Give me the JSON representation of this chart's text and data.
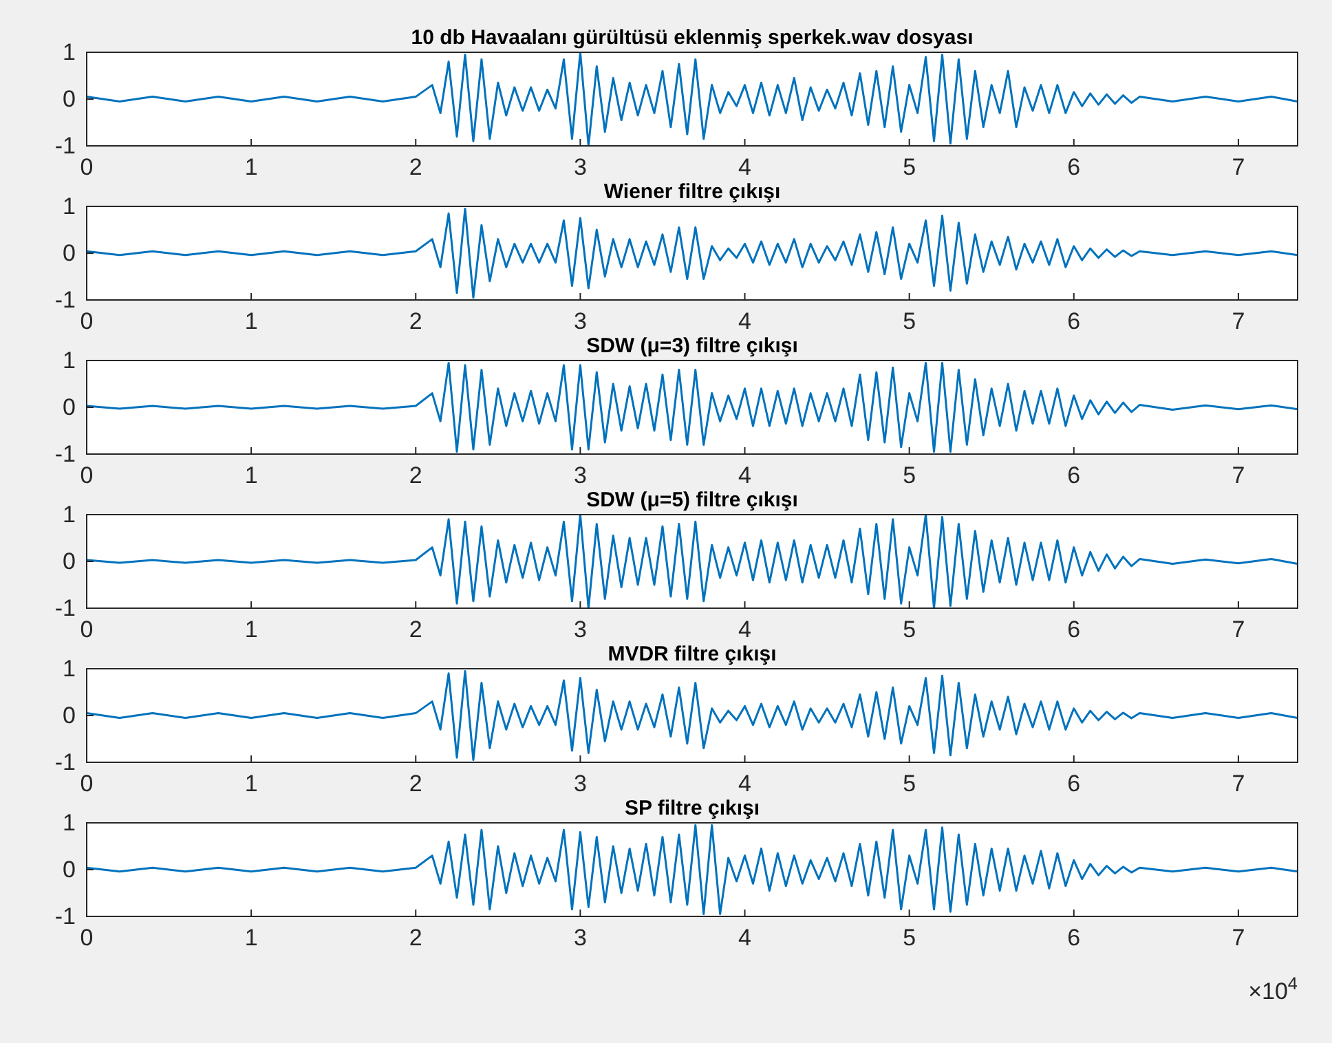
{
  "chart_data": [
    {
      "type": "line",
      "title": "10 db Havaalanı gürültüsü eklenmiş sperkek.wav dosyası",
      "color": "#0072bd",
      "xlim": [
        0,
        7.36
      ],
      "ylim": [
        -1,
        1
      ],
      "yticks": [
        -1,
        0,
        1
      ],
      "xticks": [
        0,
        1,
        2,
        3,
        4,
        5,
        6,
        7
      ],
      "x": [
        0,
        0.2,
        0.4,
        0.6,
        0.8,
        1,
        1.2,
        1.4,
        1.6,
        1.8,
        2,
        2.1,
        2.15,
        2.2,
        2.25,
        2.3,
        2.35,
        2.4,
        2.45,
        2.5,
        2.55,
        2.6,
        2.65,
        2.7,
        2.75,
        2.8,
        2.85,
        2.9,
        2.95,
        3,
        3.05,
        3.1,
        3.15,
        3.2,
        3.25,
        3.3,
        3.35,
        3.4,
        3.45,
        3.5,
        3.55,
        3.6,
        3.65,
        3.7,
        3.75,
        3.8,
        3.85,
        3.9,
        3.95,
        4,
        4.05,
        4.1,
        4.15,
        4.2,
        4.25,
        4.3,
        4.35,
        4.4,
        4.45,
        4.5,
        4.55,
        4.6,
        4.65,
        4.7,
        4.75,
        4.8,
        4.85,
        4.9,
        4.95,
        5,
        5.05,
        5.1,
        5.15,
        5.2,
        5.25,
        5.3,
        5.35,
        5.4,
        5.45,
        5.5,
        5.55,
        5.6,
        5.65,
        5.7,
        5.75,
        5.8,
        5.85,
        5.9,
        5.95,
        6,
        6.05,
        6.1,
        6.15,
        6.2,
        6.25,
        6.3,
        6.35,
        6.4,
        6.6,
        6.8,
        7,
        7.2,
        7.36
      ],
      "values": [
        0.05,
        -0.05,
        0.05,
        -0.05,
        0.05,
        -0.05,
        0.05,
        -0.05,
        0.05,
        -0.05,
        0.05,
        0.3,
        -0.3,
        0.8,
        -0.8,
        0.95,
        -0.9,
        0.85,
        -0.85,
        0.35,
        -0.35,
        0.25,
        -0.25,
        0.25,
        -0.25,
        0.2,
        -0.2,
        0.85,
        -0.85,
        1,
        -1,
        0.7,
        -0.7,
        0.45,
        -0.45,
        0.35,
        -0.35,
        0.3,
        -0.3,
        0.6,
        -0.6,
        0.75,
        -0.75,
        0.85,
        -0.85,
        0.3,
        -0.3,
        0.15,
        -0.15,
        0.3,
        -0.3,
        0.35,
        -0.35,
        0.3,
        -0.3,
        0.45,
        -0.45,
        0.25,
        -0.25,
        0.2,
        -0.2,
        0.35,
        -0.35,
        0.55,
        -0.55,
        0.6,
        -0.6,
        0.7,
        -0.7,
        0.3,
        -0.3,
        0.9,
        -0.9,
        0.95,
        -0.95,
        0.85,
        -0.85,
        0.6,
        -0.6,
        0.3,
        -0.3,
        0.6,
        -0.6,
        0.25,
        -0.25,
        0.3,
        -0.3,
        0.3,
        -0.3,
        0.15,
        -0.15,
        0.12,
        -0.12,
        0.1,
        -0.1,
        0.08,
        -0.08,
        0.05,
        -0.05,
        0.05,
        -0.05,
        0.05,
        -0.05
      ]
    },
    {
      "type": "line",
      "title": "Wiener filtre çıkışı",
      "color": "#0072bd",
      "xlim": [
        0,
        7.36
      ],
      "ylim": [
        -1,
        1
      ],
      "yticks": [
        -1,
        0,
        1
      ],
      "xticks": [
        0,
        1,
        2,
        3,
        4,
        5,
        6,
        7
      ],
      "x": [
        0,
        0.2,
        0.4,
        0.6,
        0.8,
        1,
        1.2,
        1.4,
        1.6,
        1.8,
        2,
        2.1,
        2.15,
        2.2,
        2.25,
        2.3,
        2.35,
        2.4,
        2.45,
        2.5,
        2.55,
        2.6,
        2.65,
        2.7,
        2.75,
        2.8,
        2.85,
        2.9,
        2.95,
        3,
        3.05,
        3.1,
        3.15,
        3.2,
        3.25,
        3.3,
        3.35,
        3.4,
        3.45,
        3.5,
        3.55,
        3.6,
        3.65,
        3.7,
        3.75,
        3.8,
        3.85,
        3.9,
        3.95,
        4,
        4.05,
        4.1,
        4.15,
        4.2,
        4.25,
        4.3,
        4.35,
        4.4,
        4.45,
        4.5,
        4.55,
        4.6,
        4.65,
        4.7,
        4.75,
        4.8,
        4.85,
        4.9,
        4.95,
        5,
        5.05,
        5.1,
        5.15,
        5.2,
        5.25,
        5.3,
        5.35,
        5.4,
        5.45,
        5.5,
        5.55,
        5.6,
        5.65,
        5.7,
        5.75,
        5.8,
        5.85,
        5.9,
        5.95,
        6,
        6.05,
        6.1,
        6.15,
        6.2,
        6.25,
        6.3,
        6.35,
        6.4,
        6.6,
        6.8,
        7,
        7.2,
        7.36
      ],
      "values": [
        0.04,
        -0.04,
        0.04,
        -0.04,
        0.04,
        -0.04,
        0.04,
        -0.04,
        0.04,
        -0.04,
        0.04,
        0.3,
        -0.3,
        0.85,
        -0.85,
        0.95,
        -0.95,
        0.6,
        -0.6,
        0.3,
        -0.3,
        0.2,
        -0.2,
        0.2,
        -0.2,
        0.2,
        -0.2,
        0.7,
        -0.7,
        0.75,
        -0.75,
        0.5,
        -0.5,
        0.3,
        -0.3,
        0.3,
        -0.3,
        0.25,
        -0.25,
        0.4,
        -0.4,
        0.55,
        -0.55,
        0.55,
        -0.55,
        0.15,
        -0.15,
        0.1,
        -0.1,
        0.2,
        -0.2,
        0.25,
        -0.25,
        0.2,
        -0.2,
        0.3,
        -0.3,
        0.2,
        -0.2,
        0.15,
        -0.15,
        0.25,
        -0.25,
        0.4,
        -0.4,
        0.45,
        -0.45,
        0.55,
        -0.55,
        0.2,
        -0.2,
        0.7,
        -0.7,
        0.8,
        -0.8,
        0.65,
        -0.65,
        0.4,
        -0.4,
        0.25,
        -0.25,
        0.35,
        -0.35,
        0.2,
        -0.2,
        0.25,
        -0.25,
        0.3,
        -0.3,
        0.15,
        -0.15,
        0.1,
        -0.1,
        0.08,
        -0.08,
        0.06,
        -0.06,
        0.04,
        -0.04,
        0.04,
        -0.04,
        0.04,
        -0.04
      ]
    },
    {
      "type": "line",
      "title": "SDW (μ=3) filtre çıkışı",
      "color": "#0072bd",
      "xlim": [
        0,
        7.36
      ],
      "ylim": [
        -1,
        1
      ],
      "yticks": [
        -1,
        0,
        1
      ],
      "xticks": [
        0,
        1,
        2,
        3,
        4,
        5,
        6,
        7
      ],
      "x": [
        0,
        0.2,
        0.4,
        0.6,
        0.8,
        1,
        1.2,
        1.4,
        1.6,
        1.8,
        2,
        2.1,
        2.15,
        2.2,
        2.25,
        2.3,
        2.35,
        2.4,
        2.45,
        2.5,
        2.55,
        2.6,
        2.65,
        2.7,
        2.75,
        2.8,
        2.85,
        2.9,
        2.95,
        3,
        3.05,
        3.1,
        3.15,
        3.2,
        3.25,
        3.3,
        3.35,
        3.4,
        3.45,
        3.5,
        3.55,
        3.6,
        3.65,
        3.7,
        3.75,
        3.8,
        3.85,
        3.9,
        3.95,
        4,
        4.05,
        4.1,
        4.15,
        4.2,
        4.25,
        4.3,
        4.35,
        4.4,
        4.45,
        4.5,
        4.55,
        4.6,
        4.65,
        4.7,
        4.75,
        4.8,
        4.85,
        4.9,
        4.95,
        5,
        5.05,
        5.1,
        5.15,
        5.2,
        5.25,
        5.3,
        5.35,
        5.4,
        5.45,
        5.5,
        5.55,
        5.6,
        5.65,
        5.7,
        5.75,
        5.8,
        5.85,
        5.9,
        5.95,
        6,
        6.05,
        6.1,
        6.15,
        6.2,
        6.25,
        6.3,
        6.35,
        6.4,
        6.6,
        6.8,
        7,
        7.2,
        7.36
      ],
      "values": [
        0.03,
        -0.03,
        0.03,
        -0.03,
        0.03,
        -0.03,
        0.03,
        -0.03,
        0.03,
        -0.03,
        0.03,
        0.3,
        -0.3,
        0.95,
        -0.95,
        0.9,
        -0.9,
        0.8,
        -0.8,
        0.4,
        -0.4,
        0.3,
        -0.3,
        0.35,
        -0.35,
        0.3,
        -0.3,
        0.9,
        -0.9,
        0.9,
        -0.9,
        0.75,
        -0.75,
        0.5,
        -0.5,
        0.45,
        -0.45,
        0.5,
        -0.5,
        0.7,
        -0.7,
        0.8,
        -0.8,
        0.8,
        -0.8,
        0.3,
        -0.3,
        0.25,
        -0.25,
        0.4,
        -0.4,
        0.4,
        -0.4,
        0.35,
        -0.35,
        0.4,
        -0.4,
        0.3,
        -0.3,
        0.3,
        -0.3,
        0.4,
        -0.4,
        0.7,
        -0.7,
        0.75,
        -0.75,
        0.85,
        -0.85,
        0.3,
        -0.3,
        0.95,
        -0.95,
        0.95,
        -0.95,
        0.8,
        -0.8,
        0.6,
        -0.6,
        0.4,
        -0.4,
        0.5,
        -0.5,
        0.35,
        -0.35,
        0.35,
        -0.35,
        0.4,
        -0.4,
        0.25,
        -0.25,
        0.15,
        -0.15,
        0.12,
        -0.12,
        0.1,
        -0.1,
        0.05,
        -0.05,
        0.04,
        -0.04,
        0.04,
        -0.04
      ]
    },
    {
      "type": "line",
      "title": "SDW (μ=5) filtre çıkışı",
      "color": "#0072bd",
      "xlim": [
        0,
        7.36
      ],
      "ylim": [
        -1,
        1
      ],
      "yticks": [
        -1,
        0,
        1
      ],
      "xticks": [
        0,
        1,
        2,
        3,
        4,
        5,
        6,
        7
      ],
      "x": [
        0,
        0.2,
        0.4,
        0.6,
        0.8,
        1,
        1.2,
        1.4,
        1.6,
        1.8,
        2,
        2.1,
        2.15,
        2.2,
        2.25,
        2.3,
        2.35,
        2.4,
        2.45,
        2.5,
        2.55,
        2.6,
        2.65,
        2.7,
        2.75,
        2.8,
        2.85,
        2.9,
        2.95,
        3,
        3.05,
        3.1,
        3.15,
        3.2,
        3.25,
        3.3,
        3.35,
        3.4,
        3.45,
        3.5,
        3.55,
        3.6,
        3.65,
        3.7,
        3.75,
        3.8,
        3.85,
        3.9,
        3.95,
        4,
        4.05,
        4.1,
        4.15,
        4.2,
        4.25,
        4.3,
        4.35,
        4.4,
        4.45,
        4.5,
        4.55,
        4.6,
        4.65,
        4.7,
        4.75,
        4.8,
        4.85,
        4.9,
        4.95,
        5,
        5.05,
        5.1,
        5.15,
        5.2,
        5.25,
        5.3,
        5.35,
        5.4,
        5.45,
        5.5,
        5.55,
        5.6,
        5.65,
        5.7,
        5.75,
        5.8,
        5.85,
        5.9,
        5.95,
        6,
        6.05,
        6.1,
        6.15,
        6.2,
        6.25,
        6.3,
        6.35,
        6.4,
        6.6,
        6.8,
        7,
        7.2,
        7.36
      ],
      "values": [
        0.03,
        -0.03,
        0.03,
        -0.03,
        0.03,
        -0.03,
        0.03,
        -0.03,
        0.03,
        -0.03,
        0.03,
        0.3,
        -0.3,
        0.9,
        -0.9,
        0.85,
        -0.85,
        0.75,
        -0.75,
        0.45,
        -0.45,
        0.35,
        -0.35,
        0.4,
        -0.4,
        0.3,
        -0.3,
        0.85,
        -0.85,
        1,
        -1,
        0.8,
        -0.8,
        0.55,
        -0.55,
        0.5,
        -0.5,
        0.5,
        -0.5,
        0.75,
        -0.75,
        0.8,
        -0.8,
        0.85,
        -0.85,
        0.35,
        -0.35,
        0.3,
        -0.3,
        0.4,
        -0.4,
        0.45,
        -0.45,
        0.4,
        -0.4,
        0.45,
        -0.45,
        0.35,
        -0.35,
        0.35,
        -0.35,
        0.45,
        -0.45,
        0.7,
        -0.7,
        0.8,
        -0.8,
        0.9,
        -0.9,
        0.3,
        -0.3,
        1,
        -1,
        0.95,
        -0.95,
        0.8,
        -0.8,
        0.65,
        -0.65,
        0.45,
        -0.45,
        0.5,
        -0.5,
        0.4,
        -0.4,
        0.4,
        -0.4,
        0.45,
        -0.45,
        0.3,
        -0.3,
        0.2,
        -0.2,
        0.15,
        -0.15,
        0.1,
        -0.1,
        0.05,
        -0.05,
        0.04,
        -0.04,
        0.05,
        -0.05
      ]
    },
    {
      "type": "line",
      "title": "MVDR filtre çıkışı",
      "color": "#0072bd",
      "xlim": [
        0,
        7.36
      ],
      "ylim": [
        -1,
        1
      ],
      "yticks": [
        -1,
        0,
        1
      ],
      "xticks": [
        0,
        1,
        2,
        3,
        4,
        5,
        6,
        7
      ],
      "x": [
        0,
        0.2,
        0.4,
        0.6,
        0.8,
        1,
        1.2,
        1.4,
        1.6,
        1.8,
        2,
        2.1,
        2.15,
        2.2,
        2.25,
        2.3,
        2.35,
        2.4,
        2.45,
        2.5,
        2.55,
        2.6,
        2.65,
        2.7,
        2.75,
        2.8,
        2.85,
        2.9,
        2.95,
        3,
        3.05,
        3.1,
        3.15,
        3.2,
        3.25,
        3.3,
        3.35,
        3.4,
        3.45,
        3.5,
        3.55,
        3.6,
        3.65,
        3.7,
        3.75,
        3.8,
        3.85,
        3.9,
        3.95,
        4,
        4.05,
        4.1,
        4.15,
        4.2,
        4.25,
        4.3,
        4.35,
        4.4,
        4.45,
        4.5,
        4.55,
        4.6,
        4.65,
        4.7,
        4.75,
        4.8,
        4.85,
        4.9,
        4.95,
        5,
        5.05,
        5.1,
        5.15,
        5.2,
        5.25,
        5.3,
        5.35,
        5.4,
        5.45,
        5.5,
        5.55,
        5.6,
        5.65,
        5.7,
        5.75,
        5.8,
        5.85,
        5.9,
        5.95,
        6,
        6.05,
        6.1,
        6.15,
        6.2,
        6.25,
        6.3,
        6.35,
        6.4,
        6.6,
        6.8,
        7,
        7.2,
        7.36
      ],
      "values": [
        0.05,
        -0.05,
        0.05,
        -0.05,
        0.05,
        -0.05,
        0.05,
        -0.05,
        0.05,
        -0.05,
        0.05,
        0.3,
        -0.3,
        0.9,
        -0.9,
        0.95,
        -0.95,
        0.7,
        -0.7,
        0.3,
        -0.3,
        0.25,
        -0.25,
        0.2,
        -0.2,
        0.2,
        -0.2,
        0.75,
        -0.75,
        0.8,
        -0.8,
        0.55,
        -0.55,
        0.3,
        -0.3,
        0.3,
        -0.3,
        0.25,
        -0.25,
        0.45,
        -0.45,
        0.6,
        -0.6,
        0.7,
        -0.7,
        0.15,
        -0.15,
        0.1,
        -0.1,
        0.2,
        -0.2,
        0.25,
        -0.25,
        0.2,
        -0.2,
        0.3,
        -0.3,
        0.15,
        -0.15,
        0.15,
        -0.15,
        0.25,
        -0.25,
        0.45,
        -0.45,
        0.5,
        -0.5,
        0.6,
        -0.6,
        0.2,
        -0.2,
        0.8,
        -0.8,
        0.85,
        -0.85,
        0.7,
        -0.7,
        0.45,
        -0.45,
        0.3,
        -0.3,
        0.4,
        -0.4,
        0.25,
        -0.25,
        0.3,
        -0.3,
        0.3,
        -0.3,
        0.15,
        -0.15,
        0.1,
        -0.1,
        0.08,
        -0.08,
        0.06,
        -0.06,
        0.05,
        -0.05,
        0.05,
        -0.05,
        0.05,
        -0.05
      ]
    },
    {
      "type": "line",
      "title": "SP filtre çıkışı",
      "color": "#0072bd",
      "xlim": [
        0,
        7.36
      ],
      "ylim": [
        -1,
        1
      ],
      "yticks": [
        -1,
        0,
        1
      ],
      "xticks": [
        0,
        1,
        2,
        3,
        4,
        5,
        6,
        7
      ],
      "annotations": [
        "×10$^{4}$"
      ],
      "x": [
        0,
        0.2,
        0.4,
        0.6,
        0.8,
        1,
        1.2,
        1.4,
        1.6,
        1.8,
        2,
        2.1,
        2.15,
        2.2,
        2.25,
        2.3,
        2.35,
        2.4,
        2.45,
        2.5,
        2.55,
        2.6,
        2.65,
        2.7,
        2.75,
        2.8,
        2.85,
        2.9,
        2.95,
        3,
        3.05,
        3.1,
        3.15,
        3.2,
        3.25,
        3.3,
        3.35,
        3.4,
        3.45,
        3.5,
        3.55,
        3.6,
        3.65,
        3.7,
        3.75,
        3.8,
        3.85,
        3.9,
        3.95,
        4,
        4.05,
        4.1,
        4.15,
        4.2,
        4.25,
        4.3,
        4.35,
        4.4,
        4.45,
        4.5,
        4.55,
        4.6,
        4.65,
        4.7,
        4.75,
        4.8,
        4.85,
        4.9,
        4.95,
        5,
        5.05,
        5.1,
        5.15,
        5.2,
        5.25,
        5.3,
        5.35,
        5.4,
        5.45,
        5.5,
        5.55,
        5.6,
        5.65,
        5.7,
        5.75,
        5.8,
        5.85,
        5.9,
        5.95,
        6,
        6.05,
        6.1,
        6.15,
        6.2,
        6.25,
        6.3,
        6.35,
        6.4,
        6.6,
        6.8,
        7,
        7.2,
        7.36
      ],
      "values": [
        0.04,
        -0.04,
        0.04,
        -0.04,
        0.04,
        -0.04,
        0.04,
        -0.04,
        0.04,
        -0.04,
        0.04,
        0.3,
        -0.3,
        0.6,
        -0.6,
        0.75,
        -0.75,
        0.85,
        -0.85,
        0.5,
        -0.5,
        0.35,
        -0.35,
        0.3,
        -0.3,
        0.25,
        -0.25,
        0.85,
        -0.85,
        0.8,
        -0.8,
        0.7,
        -0.7,
        0.5,
        -0.5,
        0.45,
        -0.45,
        0.55,
        -0.55,
        0.7,
        -0.7,
        0.75,
        -0.75,
        0.95,
        -0.95,
        0.95,
        -0.95,
        0.25,
        -0.25,
        0.3,
        -0.3,
        0.45,
        -0.45,
        0.35,
        -0.35,
        0.3,
        -0.3,
        0.2,
        -0.2,
        0.25,
        -0.25,
        0.35,
        -0.35,
        0.55,
        -0.55,
        0.6,
        -0.6,
        0.85,
        -0.85,
        0.3,
        -0.3,
        0.85,
        -0.85,
        0.9,
        -0.9,
        0.75,
        -0.75,
        0.55,
        -0.55,
        0.45,
        -0.45,
        0.45,
        -0.45,
        0.3,
        -0.3,
        0.4,
        -0.4,
        0.35,
        -0.35,
        0.2,
        -0.2,
        0.12,
        -0.12,
        0.08,
        -0.08,
        0.06,
        -0.06,
        0.04,
        -0.04,
        0.04,
        -0.04,
        0.04,
        -0.04
      ]
    }
  ]
}
